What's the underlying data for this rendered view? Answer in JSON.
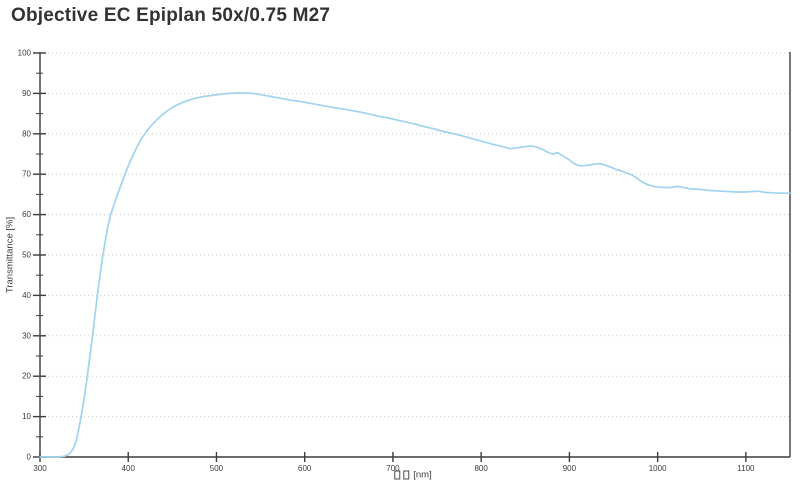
{
  "header": {
    "title": "Objective EC Epiplan 50x/0.75 M27"
  },
  "colors": {
    "line": "#a0d3ee",
    "axis": "#3c3c3c",
    "grid": "#c9c9c9",
    "background": "#ffffff",
    "text": "#3a3a3a",
    "title_text": "#333333"
  },
  "chart_data": {
    "type": "line",
    "title": "Objective EC Epiplan 50x/0.75 M27",
    "xlabel": "□□ [nm]",
    "xlabel_unit": "[nm]",
    "ylabel": "Transmittance [%]",
    "xlim": [
      300,
      1150
    ],
    "ylim": [
      0,
      100
    ],
    "x_ticks_major": [
      300,
      400,
      500,
      600,
      700,
      800,
      900,
      1000,
      1100
    ],
    "y_ticks_major": [
      0,
      10,
      20,
      30,
      40,
      50,
      60,
      70,
      80,
      90,
      100
    ],
    "y_minor_step": 5,
    "grid": "horizontal dotted lines at major y ticks",
    "legend": "none",
    "series": [
      {
        "name": "Transmittance",
        "points": [
          [
            300,
            0
          ],
          [
            310,
            0
          ],
          [
            320,
            0
          ],
          [
            328,
            0.2
          ],
          [
            332,
            0.6
          ],
          [
            335,
            1.2
          ],
          [
            338,
            2.2
          ],
          [
            341,
            4
          ],
          [
            344,
            7
          ],
          [
            347,
            10.5
          ],
          [
            350,
            14.5
          ],
          [
            353,
            19
          ],
          [
            356,
            24
          ],
          [
            359,
            29
          ],
          [
            362,
            34.5
          ],
          [
            365,
            40
          ],
          [
            368,
            45
          ],
          [
            371,
            49.5
          ],
          [
            374,
            53.5
          ],
          [
            377,
            57
          ],
          [
            380,
            60
          ],
          [
            384,
            62.5
          ],
          [
            388,
            65
          ],
          [
            392,
            67.5
          ],
          [
            396,
            69.8
          ],
          [
            400,
            72
          ],
          [
            405,
            74.5
          ],
          [
            410,
            76.8
          ],
          [
            415,
            78.8
          ],
          [
            420,
            80.4
          ],
          [
            426,
            82
          ],
          [
            432,
            83.4
          ],
          [
            438,
            84.6
          ],
          [
            445,
            85.8
          ],
          [
            452,
            86.8
          ],
          [
            460,
            87.6
          ],
          [
            468,
            88.3
          ],
          [
            476,
            88.8
          ],
          [
            485,
            89.2
          ],
          [
            495,
            89.5
          ],
          [
            505,
            89.8
          ],
          [
            515,
            90
          ],
          [
            525,
            90.1
          ],
          [
            535,
            90.1
          ],
          [
            545,
            89.9
          ],
          [
            555,
            89.5
          ],
          [
            565,
            89.1
          ],
          [
            575,
            88.7
          ],
          [
            585,
            88.3
          ],
          [
            595,
            88
          ],
          [
            605,
            87.6
          ],
          [
            615,
            87.2
          ],
          [
            625,
            86.8
          ],
          [
            635,
            86.4
          ],
          [
            645,
            86.1
          ],
          [
            655,
            85.7
          ],
          [
            665,
            85.3
          ],
          [
            675,
            84.8
          ],
          [
            685,
            84.3
          ],
          [
            695,
            83.9
          ],
          [
            705,
            83.4
          ],
          [
            715,
            82.9
          ],
          [
            725,
            82.4
          ],
          [
            735,
            81.8
          ],
          [
            745,
            81.3
          ],
          [
            755,
            80.7
          ],
          [
            765,
            80.2
          ],
          [
            775,
            79.7
          ],
          [
            785,
            79.1
          ],
          [
            795,
            78.5
          ],
          [
            805,
            77.9
          ],
          [
            815,
            77.3
          ],
          [
            825,
            76.8
          ],
          [
            833,
            76.3
          ],
          [
            841,
            76.5
          ],
          [
            849,
            76.8
          ],
          [
            857,
            77
          ],
          [
            863,
            76.7
          ],
          [
            869,
            76.2
          ],
          [
            875,
            75.5
          ],
          [
            881,
            75
          ],
          [
            887,
            75.3
          ],
          [
            893,
            74.5
          ],
          [
            899,
            73.7
          ],
          [
            905,
            72.7
          ],
          [
            911,
            72.1
          ],
          [
            917,
            72.1
          ],
          [
            923,
            72.3
          ],
          [
            929,
            72.5
          ],
          [
            935,
            72.6
          ],
          [
            941,
            72.2
          ],
          [
            947,
            71.7
          ],
          [
            953,
            71.2
          ],
          [
            959,
            70.8
          ],
          [
            965,
            70.3
          ],
          [
            971,
            69.8
          ],
          [
            977,
            68.9
          ],
          [
            983,
            68
          ],
          [
            989,
            67.4
          ],
          [
            995,
            67
          ],
          [
            1001,
            66.8
          ],
          [
            1008,
            66.7
          ],
          [
            1015,
            66.7
          ],
          [
            1022,
            67
          ],
          [
            1029,
            66.7
          ],
          [
            1036,
            66.4
          ],
          [
            1043,
            66.3
          ],
          [
            1050,
            66.2
          ],
          [
            1058,
            66
          ],
          [
            1066,
            65.9
          ],
          [
            1074,
            65.8
          ],
          [
            1082,
            65.7
          ],
          [
            1090,
            65.6
          ],
          [
            1098,
            65.6
          ],
          [
            1106,
            65.7
          ],
          [
            1114,
            65.8
          ],
          [
            1122,
            65.5
          ],
          [
            1130,
            65.4
          ],
          [
            1138,
            65.3
          ],
          [
            1146,
            65.3
          ],
          [
            1150,
            65.3
          ]
        ]
      }
    ]
  }
}
